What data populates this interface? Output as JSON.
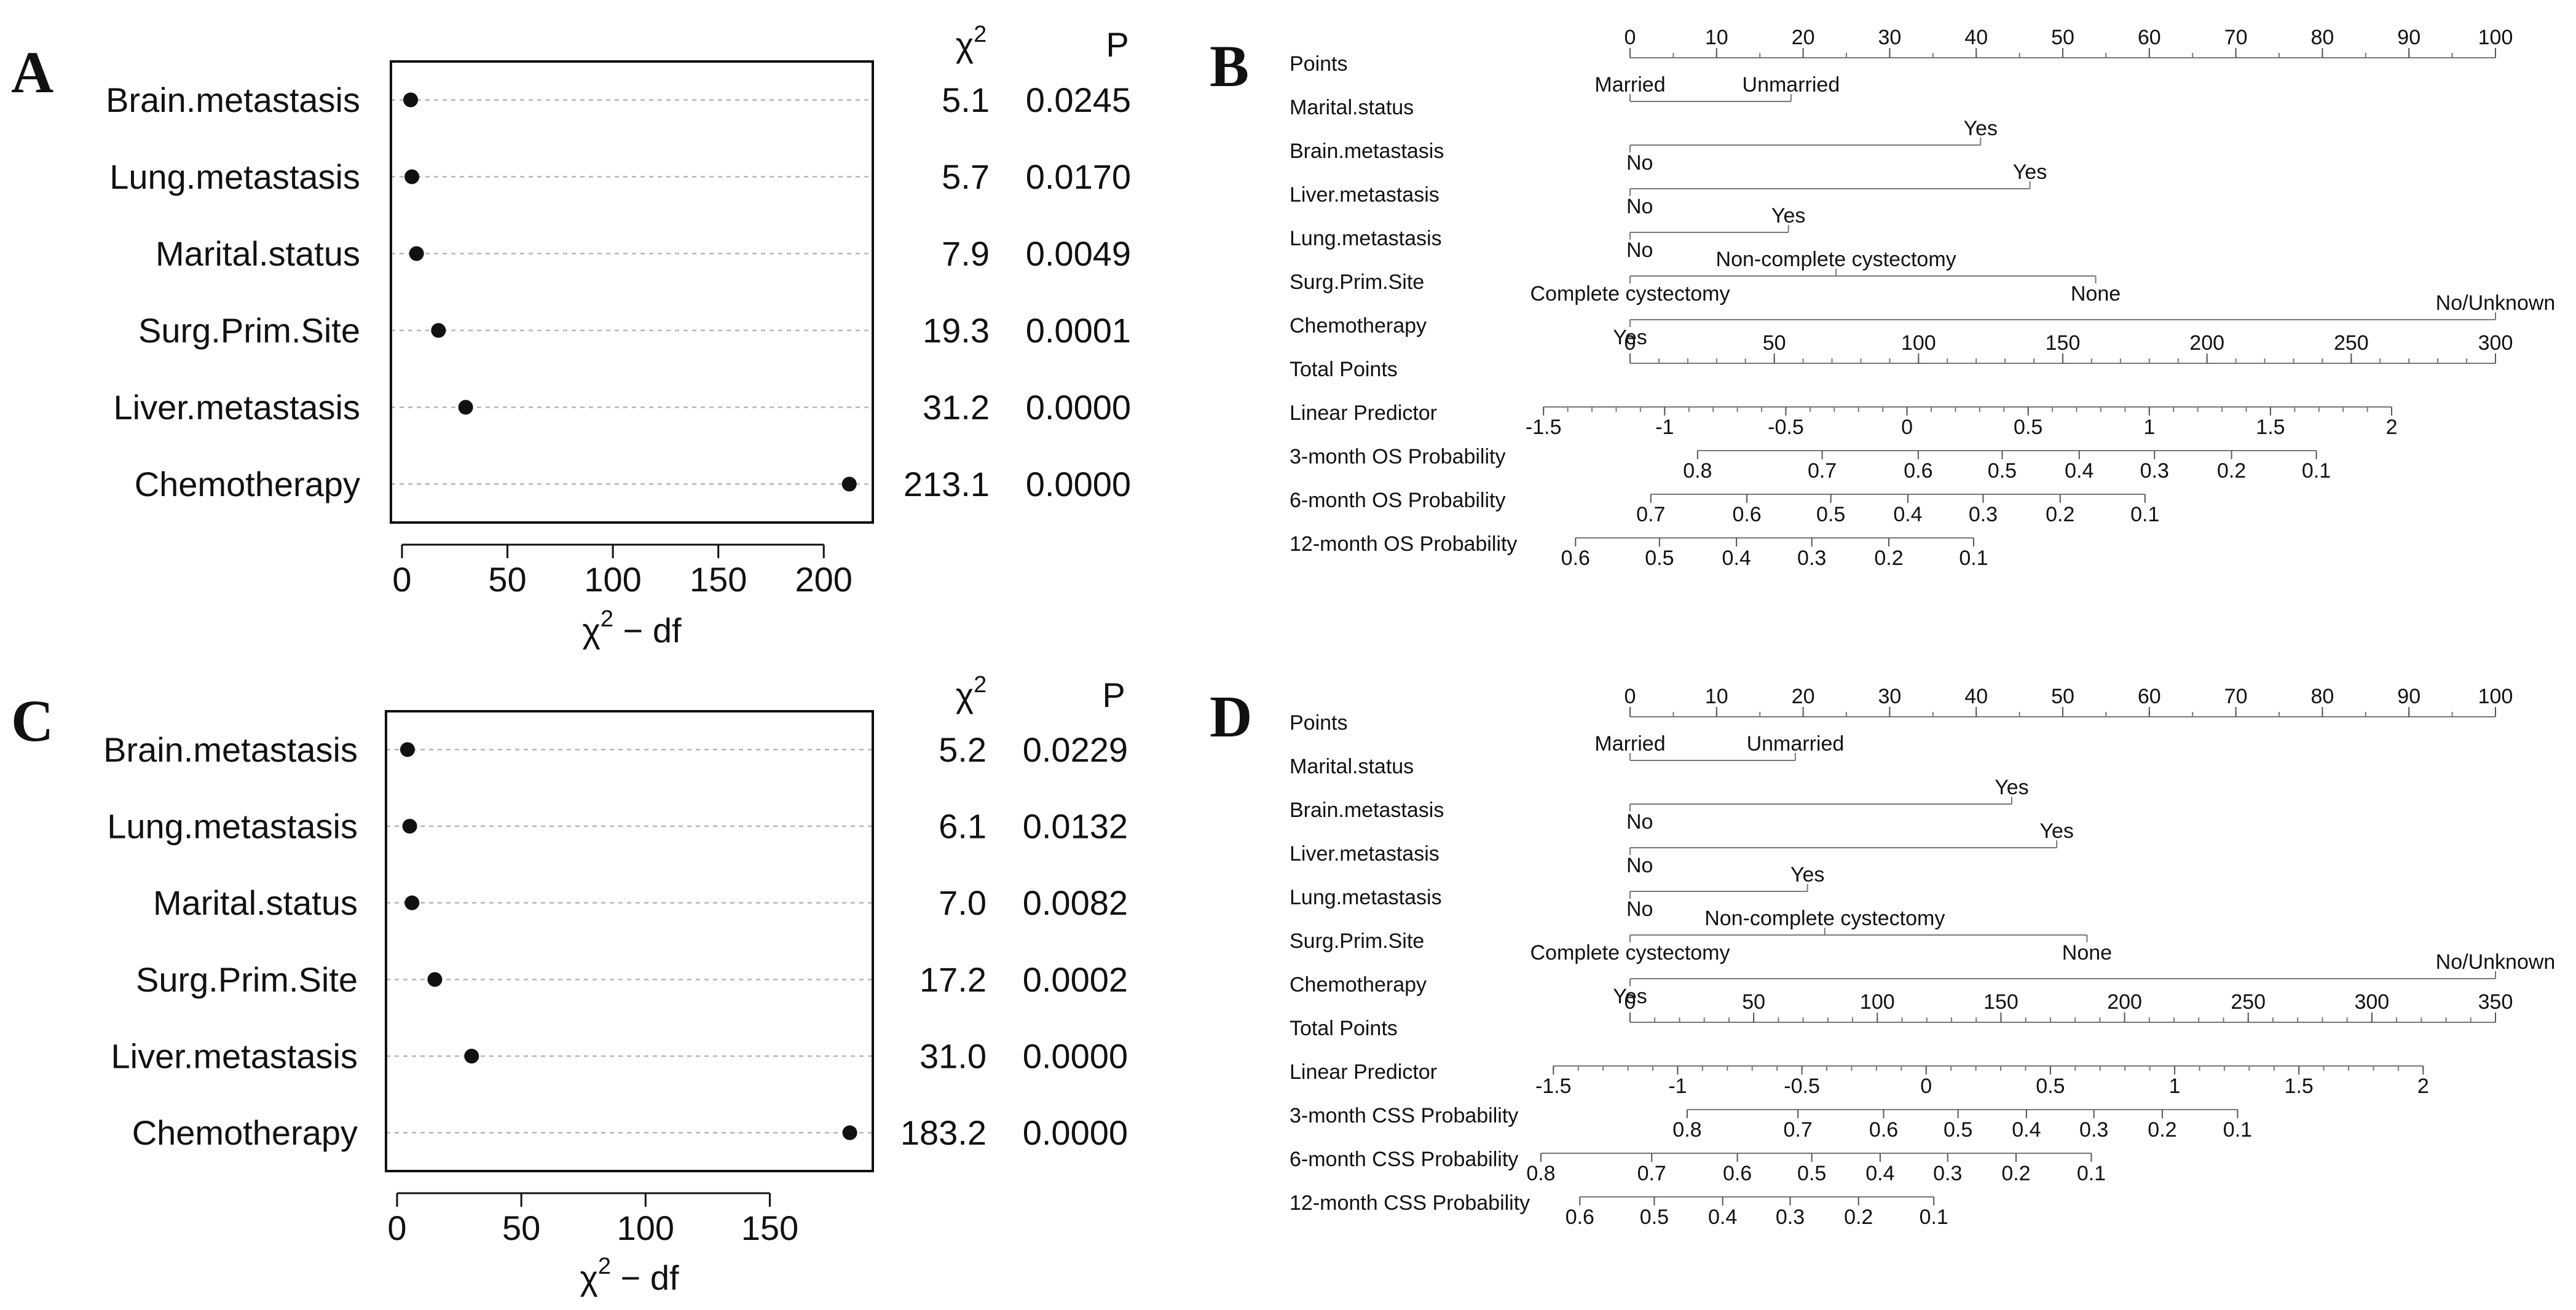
{
  "chart_data": [
    {
      "type": "scatter",
      "panel": "A",
      "xlabel": "χ² − df",
      "xlabel_main": "χ",
      "xlabel_sup": "2",
      "xlabel_rest": " − df",
      "chi_header": "χ",
      "chi_sup": "2",
      "p_header": "P",
      "xlim": [
        0,
        218
      ],
      "xticks": [
        0,
        50,
        100,
        150,
        200
      ],
      "rows": [
        {
          "label": "Brain.metastasis",
          "x": 4.1,
          "chi2": "5.1",
          "p": "0.0245"
        },
        {
          "label": "Lung.metastasis",
          "x": 4.7,
          "chi2": "5.7",
          "p": "0.0170"
        },
        {
          "label": "Marital.status",
          "x": 6.9,
          "chi2": "7.9",
          "p": "0.0049"
        },
        {
          "label": "Surg.Prim.Site",
          "x": 17.3,
          "chi2": "19.3",
          "p": "0.0001"
        },
        {
          "label": "Liver.metastasis",
          "x": 30.2,
          "chi2": "31.2",
          "p": "0.0000"
        },
        {
          "label": "Chemotherapy",
          "x": 212.1,
          "chi2": "213.1",
          "p": "0.0000"
        }
      ]
    },
    {
      "type": "nomogram",
      "panel": "B",
      "rows": [
        {
          "label": "Points",
          "kind": "axis",
          "min": 0,
          "max": 100,
          "ticks": [
            {
              "v": 0,
              "t": "0"
            },
            {
              "v": 10,
              "t": "10"
            },
            {
              "v": 20,
              "t": "20"
            },
            {
              "v": 30,
              "t": "30"
            },
            {
              "v": 40,
              "t": "40"
            },
            {
              "v": 50,
              "t": "50"
            },
            {
              "v": 60,
              "t": "60"
            },
            {
              "v": 70,
              "t": "70"
            },
            {
              "v": 80,
              "t": "80"
            },
            {
              "v": 90,
              "t": "90"
            },
            {
              "v": 100,
              "t": "100"
            }
          ],
          "minor": 5
        },
        {
          "label": "Marital.status",
          "kind": "cat",
          "cats": [
            {
              "v": 0,
              "t": "Married",
              "pos": "above",
              "anchor": "middle"
            },
            {
              "v": 18.6,
              "t": "Unmarried",
              "pos": "above",
              "anchor": "middle"
            }
          ]
        },
        {
          "label": "Brain.metastasis",
          "kind": "cat",
          "cats": [
            {
              "v": 0,
              "t": "No",
              "pos": "below",
              "anchor": "start"
            },
            {
              "v": 40.5,
              "t": "Yes",
              "pos": "above",
              "anchor": "middle"
            }
          ]
        },
        {
          "label": "Liver.metastasis",
          "kind": "cat",
          "cats": [
            {
              "v": 0,
              "t": "No",
              "pos": "below",
              "anchor": "start"
            },
            {
              "v": 46.2,
              "t": "Yes",
              "pos": "above",
              "anchor": "middle"
            }
          ]
        },
        {
          "label": "Lung.metastasis",
          "kind": "cat",
          "cats": [
            {
              "v": 0,
              "t": "No",
              "pos": "below",
              "anchor": "start"
            },
            {
              "v": 18.3,
              "t": "Yes",
              "pos": "above",
              "anchor": "middle"
            }
          ]
        },
        {
          "label": "Surg.Prim.Site",
          "kind": "cat",
          "cats": [
            {
              "v": 0,
              "t": "Complete cystectomy",
              "pos": "below",
              "anchor": "middle"
            },
            {
              "v": 53.8,
              "t": "None",
              "pos": "below",
              "anchor": "middle"
            },
            {
              "v": 23.8,
              "t": "Non-complete cystectomy",
              "pos": "above",
              "anchor": "middle"
            }
          ]
        },
        {
          "label": "Chemotherapy",
          "kind": "cat",
          "cats": [
            {
              "v": 0,
              "t": "Yes",
              "pos": "below",
              "anchor": "middle"
            },
            {
              "v": 100,
              "t": "No/Unknown",
              "pos": "above",
              "anchor": "middle"
            }
          ]
        },
        {
          "label": "Total Points",
          "kind": "axis",
          "min": 0,
          "max": 300,
          "ticks": [
            {
              "v": 0,
              "t": "0"
            },
            {
              "v": 50,
              "t": "50"
            },
            {
              "v": 100,
              "t": "100"
            },
            {
              "v": 150,
              "t": "150"
            },
            {
              "v": 200,
              "t": "200"
            },
            {
              "v": 250,
              "t": "250"
            },
            {
              "v": 300,
              "t": "300"
            }
          ],
          "minor": 10
        },
        {
          "label": "Linear Predictor",
          "kind": "axis",
          "lo": -1.5,
          "hi": 2,
          "ticks": [
            {
              "v": -1.5,
              "t": "-1.5"
            },
            {
              "v": -1,
              "t": "-1"
            },
            {
              "v": -0.5,
              "t": "-0.5"
            },
            {
              "v": 0,
              "t": "0"
            },
            {
              "v": 0.5,
              "t": "0.5"
            },
            {
              "v": 1,
              "t": "1"
            },
            {
              "v": 1.5,
              "t": "1.5"
            },
            {
              "v": 2,
              "t": "2"
            }
          ],
          "minor": 0.1
        },
        {
          "label": "3-month OS Probability",
          "kind": "prob",
          "ticks": [
            {
              "v": 0.8,
              "t": "0.8",
              "at": 0.078
            },
            {
              "v": 0.7,
              "t": "0.7",
              "at": 0.222
            },
            {
              "v": 0.6,
              "t": "0.6",
              "at": 0.333
            },
            {
              "v": 0.5,
              "t": "0.5",
              "at": 0.43
            },
            {
              "v": 0.4,
              "t": "0.4",
              "at": 0.519
            },
            {
              "v": 0.3,
              "t": "0.3",
              "at": 0.606
            },
            {
              "v": 0.2,
              "t": "0.2",
              "at": 0.695
            },
            {
              "v": 0.1,
              "t": "0.1",
              "at": 0.793
            }
          ]
        },
        {
          "label": "6-month OS Probability",
          "kind": "prob",
          "ticks": [
            {
              "v": 0.7,
              "t": "0.7",
              "at": 0.024
            },
            {
              "v": 0.6,
              "t": "0.6",
              "at": 0.135
            },
            {
              "v": 0.5,
              "t": "0.5",
              "at": 0.232
            },
            {
              "v": 0.4,
              "t": "0.4",
              "at": 0.321
            },
            {
              "v": 0.3,
              "t": "0.3",
              "at": 0.408
            },
            {
              "v": 0.2,
              "t": "0.2",
              "at": 0.497
            },
            {
              "v": 0.1,
              "t": "0.1",
              "at": 0.595
            }
          ]
        },
        {
          "label": "12-month OS Probability",
          "kind": "prob",
          "ticks": [
            {
              "v": 0.6,
              "t": "0.6",
              "at": -0.063
            },
            {
              "v": 0.5,
              "t": "0.5",
              "at": 0.034
            },
            {
              "v": 0.4,
              "t": "0.4",
              "at": 0.123
            },
            {
              "v": 0.3,
              "t": "0.3",
              "at": 0.21
            },
            {
              "v": 0.2,
              "t": "0.2",
              "at": 0.299
            },
            {
              "v": 0.1,
              "t": "0.1",
              "at": 0.397
            }
          ]
        }
      ]
    },
    {
      "type": "scatter",
      "panel": "C",
      "xlabel": "χ² − df",
      "xlabel_main": "χ",
      "xlabel_sup": "2",
      "xlabel_rest": " − df",
      "chi_header": "χ",
      "chi_sup": "2",
      "p_header": "P",
      "xlim": [
        0,
        187
      ],
      "xticks": [
        0,
        50,
        100,
        150
      ],
      "rows": [
        {
          "label": "Brain.metastasis",
          "x": 4.2,
          "chi2": "5.2",
          "p": "0.0229"
        },
        {
          "label": "Lung.metastasis",
          "x": 5.1,
          "chi2": "6.1",
          "p": "0.0132"
        },
        {
          "label": "Marital.status",
          "x": 6.0,
          "chi2": "7.0",
          "p": "0.0082"
        },
        {
          "label": "Surg.Prim.Site",
          "x": 15.2,
          "chi2": "17.2",
          "p": "0.0002"
        },
        {
          "label": "Liver.metastasis",
          "x": 30.0,
          "chi2": "31.0",
          "p": "0.0000"
        },
        {
          "label": "Chemotherapy",
          "x": 182.2,
          "chi2": "183.2",
          "p": "0.0000"
        }
      ]
    },
    {
      "type": "nomogram",
      "panel": "D",
      "rows": [
        {
          "label": "Points",
          "kind": "axis",
          "min": 0,
          "max": 100,
          "ticks": [
            {
              "v": 0,
              "t": "0"
            },
            {
              "v": 10,
              "t": "10"
            },
            {
              "v": 20,
              "t": "20"
            },
            {
              "v": 30,
              "t": "30"
            },
            {
              "v": 40,
              "t": "40"
            },
            {
              "v": 50,
              "t": "50"
            },
            {
              "v": 60,
              "t": "60"
            },
            {
              "v": 70,
              "t": "70"
            },
            {
              "v": 80,
              "t": "80"
            },
            {
              "v": 90,
              "t": "90"
            },
            {
              "v": 100,
              "t": "100"
            }
          ],
          "minor": 5
        },
        {
          "label": "Marital.status",
          "kind": "cat",
          "cats": [
            {
              "v": 0,
              "t": "Married",
              "pos": "above",
              "anchor": "middle"
            },
            {
              "v": 19.1,
              "t": "Unmarried",
              "pos": "above",
              "anchor": "middle"
            }
          ]
        },
        {
          "label": "Brain.metastasis",
          "kind": "cat",
          "cats": [
            {
              "v": 0,
              "t": "No",
              "pos": "below",
              "anchor": "start"
            },
            {
              "v": 44.1,
              "t": "Yes",
              "pos": "above",
              "anchor": "middle"
            }
          ]
        },
        {
          "label": "Liver.metastasis",
          "kind": "cat",
          "cats": [
            {
              "v": 0,
              "t": "No",
              "pos": "below",
              "anchor": "start"
            },
            {
              "v": 49.3,
              "t": "Yes",
              "pos": "above",
              "anchor": "middle"
            }
          ]
        },
        {
          "label": "Lung.metastasis",
          "kind": "cat",
          "cats": [
            {
              "v": 0,
              "t": "No",
              "pos": "below",
              "anchor": "start"
            },
            {
              "v": 20.5,
              "t": "Yes",
              "pos": "above",
              "anchor": "middle"
            }
          ]
        },
        {
          "label": "Surg.Prim.Site",
          "kind": "cat",
          "cats": [
            {
              "v": 0,
              "t": "Complete cystectomy",
              "pos": "below",
              "anchor": "middle"
            },
            {
              "v": 52.8,
              "t": "None",
              "pos": "below",
              "anchor": "middle"
            },
            {
              "v": 22.5,
              "t": "Non-complete cystectomy",
              "pos": "above",
              "anchor": "middle"
            }
          ]
        },
        {
          "label": "Chemotherapy",
          "kind": "cat",
          "cats": [
            {
              "v": 0,
              "t": "Yes",
              "pos": "below",
              "anchor": "middle"
            },
            {
              "v": 100,
              "t": "No/Unknown",
              "pos": "above",
              "anchor": "middle"
            }
          ]
        },
        {
          "label": "Total Points",
          "kind": "axis",
          "min": 0,
          "max": 350,
          "ticks": [
            {
              "v": 0,
              "t": "0"
            },
            {
              "v": 50,
              "t": "50"
            },
            {
              "v": 100,
              "t": "100"
            },
            {
              "v": 150,
              "t": "150"
            },
            {
              "v": 200,
              "t": "200"
            },
            {
              "v": 250,
              "t": "250"
            },
            {
              "v": 300,
              "t": "300"
            },
            {
              "v": 350,
              "t": "350"
            }
          ],
          "minor": 10
        },
        {
          "label": "Linear Predictor",
          "kind": "axis",
          "lo": -1.5,
          "hi": 2,
          "ticks": [
            {
              "v": -1.5,
              "t": "-1.5"
            },
            {
              "v": -1,
              "t": "-1"
            },
            {
              "v": -0.5,
              "t": "-0.5"
            },
            {
              "v": 0,
              "t": "0"
            },
            {
              "v": 0.5,
              "t": "0.5"
            },
            {
              "v": 1,
              "t": "1"
            },
            {
              "v": 1.5,
              "t": "1.5"
            },
            {
              "v": 2,
              "t": "2"
            }
          ],
          "minor": 0.1
        },
        {
          "label": "3-month CSS Probability",
          "kind": "prob",
          "ticks": [
            {
              "v": 0.8,
              "t": "0.8",
              "at": 0.066
            },
            {
              "v": 0.7,
              "t": "0.7",
              "at": 0.194
            },
            {
              "v": 0.6,
              "t": "0.6",
              "at": 0.293
            },
            {
              "v": 0.5,
              "t": "0.5",
              "at": 0.379
            },
            {
              "v": 0.4,
              "t": "0.4",
              "at": 0.458
            },
            {
              "v": 0.3,
              "t": "0.3",
              "at": 0.536
            },
            {
              "v": 0.2,
              "t": "0.2",
              "at": 0.615
            },
            {
              "v": 0.1,
              "t": "0.1",
              "at": 0.702
            }
          ]
        },
        {
          "label": "6-month CSS Probability",
          "kind": "prob",
          "ticks": [
            {
              "v": 0.8,
              "t": "0.8",
              "at": -0.103
            },
            {
              "v": 0.7,
              "t": "0.7",
              "at": 0.025
            },
            {
              "v": 0.6,
              "t": "0.6",
              "at": 0.124
            },
            {
              "v": 0.5,
              "t": "0.5",
              "at": 0.21
            },
            {
              "v": 0.4,
              "t": "0.4",
              "at": 0.289
            },
            {
              "v": 0.3,
              "t": "0.3",
              "at": 0.367
            },
            {
              "v": 0.2,
              "t": "0.2",
              "at": 0.446
            },
            {
              "v": 0.1,
              "t": "0.1",
              "at": 0.533
            }
          ]
        },
        {
          "label": "12-month CSS Probability",
          "kind": "prob",
          "ticks": [
            {
              "v": 0.6,
              "t": "0.6",
              "at": -0.058
            },
            {
              "v": 0.5,
              "t": "0.5",
              "at": 0.028
            },
            {
              "v": 0.4,
              "t": "0.4",
              "at": 0.107
            },
            {
              "v": 0.3,
              "t": "0.3",
              "at": 0.185
            },
            {
              "v": 0.2,
              "t": "0.2",
              "at": 0.264
            },
            {
              "v": 0.1,
              "t": "0.1",
              "at": 0.351
            }
          ]
        }
      ]
    }
  ]
}
